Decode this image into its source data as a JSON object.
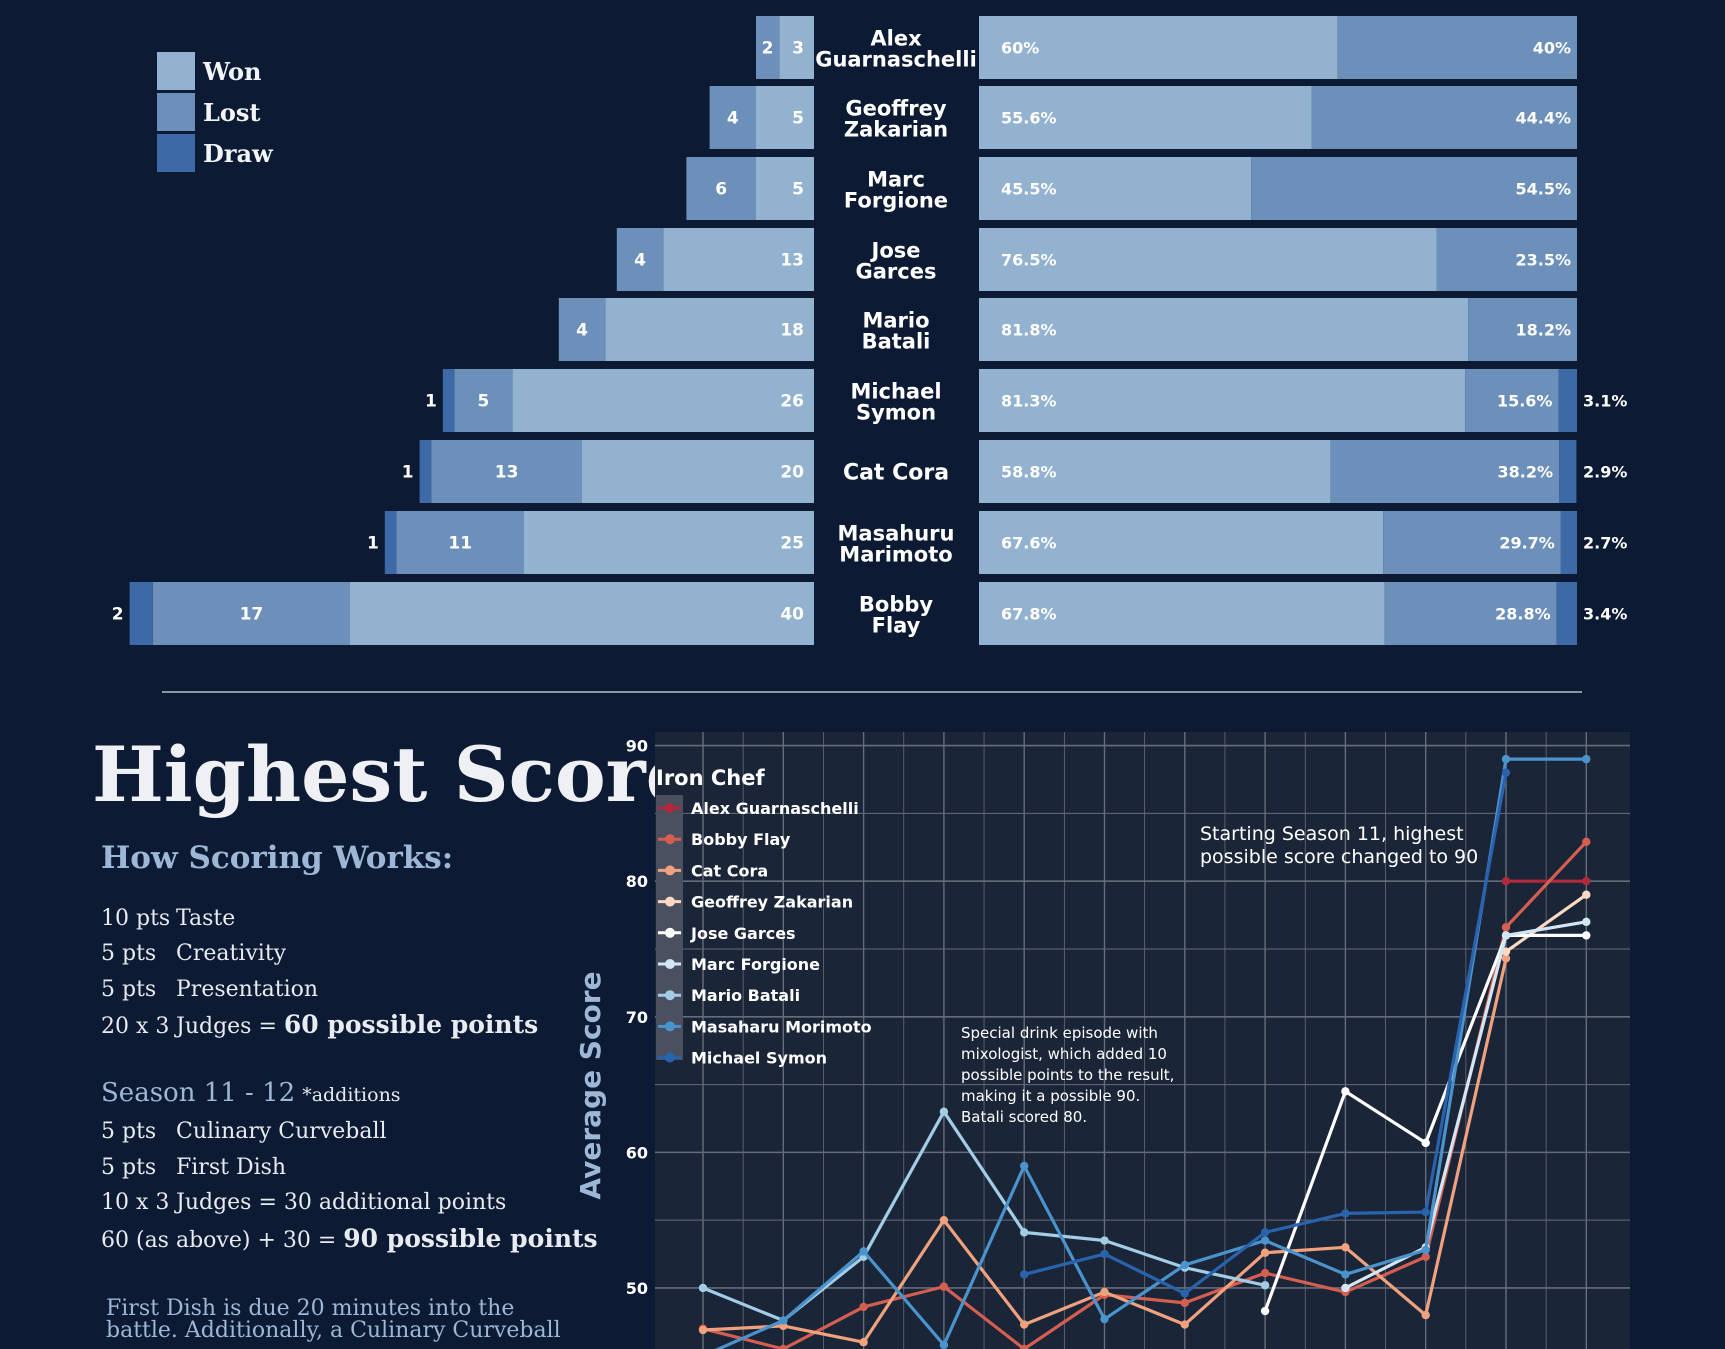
{
  "colors": {
    "background": "#0d1a33",
    "won": "#93b2cf",
    "lost": "#6c90ba",
    "draw": "#3d6aa6",
    "divider": "#8c96a6",
    "plot_bg": "#1b2538",
    "grid": "#666d7a",
    "accent_text": "#9db7d6"
  },
  "legend": [
    {
      "label": "Won",
      "color": "#93b2cf"
    },
    {
      "label": "Lost",
      "color": "#6c90ba"
    },
    {
      "label": "Draw",
      "color": "#3d6aa6"
    }
  ],
  "chart_data": [
    {
      "type": "bar",
      "orientation": "horizontal-stacked",
      "categories": [
        "Alex Guarnaschelli",
        "Geoffrey Zakarian",
        "Marc Forgione",
        "Jose Garces",
        "Mario Batali",
        "Michael Symon",
        "Cat Cora",
        "Masahuru Marimoto",
        "Bobby Flay"
      ],
      "category_lines": [
        [
          "Alex",
          "Guarnaschelli"
        ],
        [
          "Geoffrey",
          "Zakarian"
        ],
        [
          "Marc",
          "Forgione"
        ],
        [
          "Jose",
          "Garces"
        ],
        [
          "Mario",
          "Batali"
        ],
        [
          "Michael",
          "Symon"
        ],
        [
          "Cat Cora"
        ],
        [
          "Masahuru",
          "Marimoto"
        ],
        [
          "Bobby",
          "Flay"
        ]
      ],
      "series": [
        {
          "name": "Won",
          "values": [
            3,
            5,
            5,
            13,
            18,
            26,
            20,
            25,
            40
          ]
        },
        {
          "name": "Lost",
          "values": [
            2,
            4,
            6,
            4,
            4,
            5,
            13,
            11,
            17
          ]
        },
        {
          "name": "Draw",
          "values": [
            0,
            0,
            0,
            0,
            0,
            1,
            1,
            1,
            2
          ]
        }
      ]
    },
    {
      "type": "bar",
      "orientation": "horizontal-stacked-percent",
      "categories": [
        "Alex Guarnaschelli",
        "Geoffrey Zakarian",
        "Marc Forgione",
        "Jose Garces",
        "Mario Batali",
        "Michael Symon",
        "Cat Cora",
        "Masahuru Marimoto",
        "Bobby Flay"
      ],
      "series": [
        {
          "name": "Won",
          "values": [
            60,
            55.6,
            45.5,
            76.5,
            81.8,
            81.3,
            58.8,
            67.6,
            67.8
          ]
        },
        {
          "name": "Lost",
          "values": [
            40,
            44.4,
            54.5,
            23.5,
            18.2,
            15.6,
            38.2,
            29.7,
            28.8
          ]
        },
        {
          "name": "Draw",
          "values": [
            0,
            0,
            0,
            0,
            0,
            3.1,
            2.9,
            2.7,
            3.4
          ]
        }
      ],
      "labels_won": [
        "60%",
        "55.6%",
        "45.5%",
        "76.5%",
        "81.8%",
        "81.3%",
        "58.8%",
        "67.6%",
        "67.8%"
      ],
      "labels_lost": [
        "40%",
        "44.4%",
        "54.5%",
        "23.5%",
        "18.2%",
        "15.6%",
        "38.2%",
        "29.7%",
        "28.8%"
      ],
      "labels_draw": [
        "",
        "",
        "",
        "",
        "",
        "3.1%",
        "2.9%",
        "2.7%",
        "3.4%"
      ]
    },
    {
      "type": "line",
      "title": "Highest Score",
      "ylabel": "Average Score",
      "x": [
        1,
        2,
        3,
        4,
        5,
        6,
        7,
        8,
        9,
        10,
        11,
        12
      ],
      "ylim": [
        45.5,
        91
      ],
      "yticks": [
        50,
        60,
        70,
        80,
        90
      ],
      "grid": true,
      "legend_title": "Iron Chef",
      "legend_position": "top-left",
      "series": [
        {
          "name": "Alex Guarnaschelli",
          "color": "#b3283a",
          "values": [
            null,
            null,
            null,
            null,
            null,
            null,
            null,
            null,
            null,
            null,
            80,
            80
          ]
        },
        {
          "name": "Bobby Flay",
          "color": "#d45f50",
          "values": [
            47,
            45.5,
            48.6,
            50.1,
            45.5,
            49.5,
            48.9,
            51.1,
            49.7,
            52.3,
            76.6,
            82.9
          ]
        },
        {
          "name": "Cat Cora",
          "color": "#f0a27f",
          "values": [
            46.9,
            47.2,
            46,
            55,
            47.3,
            49.7,
            47.3,
            52.6,
            53,
            48,
            74.3,
            null
          ]
        },
        {
          "name": "Geoffrey Zakarian",
          "color": "#fcd9c2",
          "values": [
            null,
            null,
            null,
            null,
            null,
            null,
            null,
            null,
            null,
            null,
            74.8,
            79
          ]
        },
        {
          "name": "Jose Garces",
          "color": "#ffffff",
          "values": [
            null,
            null,
            null,
            null,
            null,
            null,
            null,
            48.3,
            64.5,
            60.7,
            76,
            76
          ]
        },
        {
          "name": "Marc Forgione",
          "color": "#d3e6f4",
          "values": [
            null,
            null,
            null,
            null,
            null,
            null,
            null,
            null,
            50,
            53,
            76,
            77
          ]
        },
        {
          "name": "Mario Batali",
          "color": "#a3cce6",
          "values": [
            50,
            47.6,
            52.3,
            63,
            54.1,
            53.5,
            51.5,
            50.2,
            null,
            null,
            null,
            null
          ]
        },
        {
          "name": "Masaharu Morimoto",
          "color": "#4a93cc",
          "values": [
            45,
            47.6,
            52.7,
            45.8,
            59,
            47.7,
            51.7,
            53.5,
            51,
            52.8,
            89,
            89
          ]
        },
        {
          "name": "Michael Symon",
          "color": "#2a63ad",
          "values": [
            null,
            null,
            null,
            null,
            51,
            52.5,
            49.6,
            54.1,
            55.5,
            55.6,
            88,
            null
          ]
        }
      ],
      "annotations": [
        {
          "lines": [
            "Starting Season 11, highest",
            "possible score changed to 90"
          ]
        },
        {
          "lines": [
            "Special drink episode with",
            "mixologist, which added 10",
            "possible points to the result,",
            "making it a possible 90.",
            "Batali scored 80."
          ]
        }
      ]
    }
  ],
  "scoring": {
    "heading": "How Scoring Works:",
    "base_rows": [
      {
        "pts": "10 pts",
        "label": "Taste"
      },
      {
        "pts": "5 pts",
        "label": "Creativity"
      },
      {
        "pts": "5 pts",
        "label": "Presentation"
      }
    ],
    "judges_pts": "20 x 3",
    "judges_text": "Judges = ",
    "judges_total": "60 possible points",
    "season_title": "Season 11 - 12",
    "season_note": "*additions",
    "season_rows": [
      {
        "pts": "5 pts",
        "label": "Culinary Curveball"
      },
      {
        "pts": "5 pts",
        "label": "First Dish"
      }
    ],
    "judges2_pts": "10 x 3",
    "judges2_text": "Judges = 30 additional points",
    "total_text": "60 (as above) + 30 = ",
    "total_strong": "90 possible points",
    "footnote_lines": [
      "First Dish is due 20 minutes into the",
      "battle. Additionally, a Culinary Curveball"
    ]
  }
}
